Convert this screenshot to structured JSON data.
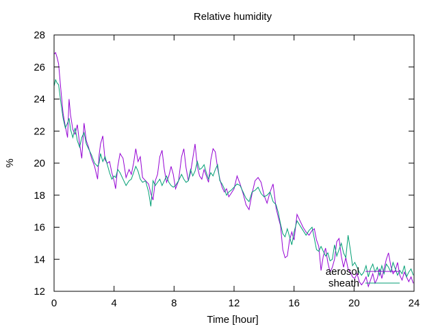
{
  "chart_data": {
    "type": "line",
    "title": "Relative humidity",
    "xlabel": "Time [hour]",
    "ylabel": "%",
    "xlim": [
      0,
      24
    ],
    "ylim": [
      12,
      28
    ],
    "xticks": [
      0,
      4,
      8,
      12,
      16,
      20,
      24
    ],
    "yticks": [
      12,
      14,
      16,
      18,
      20,
      22,
      24,
      26,
      28
    ],
    "grid": false,
    "legend_position": "bottom-right",
    "series": [
      {
        "name": "aerosol",
        "color": "#9400d3",
        "x": [
          0,
          0.1,
          0.2,
          0.3,
          0.45,
          0.6,
          0.75,
          0.9,
          1.0,
          1.1,
          1.25,
          1.4,
          1.55,
          1.7,
          1.85,
          2.0,
          2.15,
          2.3,
          2.5,
          2.7,
          2.9,
          3.0,
          3.1,
          3.25,
          3.4,
          3.55,
          3.7,
          3.85,
          4.0,
          4.1,
          4.25,
          4.4,
          4.6,
          4.8,
          5.0,
          5.15,
          5.3,
          5.45,
          5.6,
          5.75,
          5.9,
          6.1,
          6.3,
          6.45,
          6.6,
          6.75,
          6.9,
          7.05,
          7.2,
          7.35,
          7.5,
          7.65,
          7.8,
          7.95,
          8.1,
          8.3,
          8.5,
          8.65,
          8.8,
          8.95,
          9.1,
          9.25,
          9.4,
          9.55,
          9.7,
          9.85,
          10.0,
          10.15,
          10.3,
          10.45,
          10.6,
          10.75,
          10.9,
          11.05,
          11.2,
          11.35,
          11.5,
          11.65,
          11.8,
          12.0,
          12.2,
          12.4,
          12.6,
          12.8,
          13.0,
          13.2,
          13.4,
          13.6,
          13.8,
          14.0,
          14.2,
          14.4,
          14.6,
          14.8,
          14.95,
          15.1,
          15.25,
          15.4,
          15.55,
          15.7,
          15.85,
          16.0,
          16.2,
          16.4,
          16.6,
          16.8,
          17.0,
          17.2,
          17.35,
          17.5,
          17.65,
          17.8,
          17.95,
          18.1,
          18.25,
          18.4,
          18.55,
          18.7,
          18.85,
          19.0,
          19.15,
          19.3,
          19.45,
          19.6,
          19.75,
          19.9,
          20.05,
          20.2,
          20.35,
          20.5,
          20.65,
          20.8,
          20.95,
          21.1,
          21.25,
          21.4,
          21.55,
          21.7,
          21.85,
          22.0,
          22.15,
          22.3,
          22.45,
          22.6,
          22.75,
          22.9,
          23.05,
          23.2,
          23.35,
          23.5,
          23.65,
          23.8,
          23.95
        ],
        "y": [
          26.8,
          26.9,
          26.6,
          26.2,
          24.6,
          23.1,
          22.3,
          21.6,
          24.0,
          23.0,
          22.1,
          21.8,
          22.4,
          21.2,
          20.3,
          22.5,
          21.4,
          21.0,
          20.3,
          19.8,
          19.0,
          20.5,
          21.2,
          21.7,
          20.2,
          20.0,
          20.1,
          19.4,
          18.9,
          18.4,
          19.8,
          20.6,
          20.3,
          19.1,
          19.6,
          19.3,
          20.0,
          20.9,
          20.1,
          20.4,
          19.1,
          18.9,
          18.7,
          18.1,
          17.7,
          18.9,
          19.3,
          20.4,
          20.8,
          19.6,
          18.8,
          19.2,
          19.8,
          19.3,
          18.4,
          18.9,
          20.4,
          20.9,
          19.7,
          18.9,
          19.4,
          20.3,
          21.2,
          19.8,
          19.2,
          19.0,
          19.6,
          19.2,
          18.8,
          20.2,
          20.9,
          20.7,
          19.7,
          19.0,
          18.5,
          18.2,
          18.4,
          17.9,
          18.1,
          18.4,
          19.2,
          18.7,
          18.1,
          17.4,
          17.1,
          18.1,
          18.9,
          19.1,
          18.8,
          18.0,
          17.5,
          18.2,
          18.7,
          17.2,
          16.6,
          16.1,
          14.6,
          14.1,
          14.2,
          15.2,
          15.7,
          15.2,
          16.8,
          16.4,
          16.0,
          15.7,
          15.5,
          15.8,
          15.9,
          15.2,
          14.8,
          13.3,
          14.2,
          14.7,
          13.8,
          13.2,
          13.5,
          14.0,
          15.1,
          15.3,
          14.2,
          13.5,
          14.1,
          13.4,
          13.2,
          12.9,
          12.8,
          13.1,
          12.6,
          12.4,
          12.6,
          12.9,
          12.3,
          12.7,
          13.1,
          12.5,
          12.8,
          13.4,
          12.8,
          13.4,
          14.0,
          14.4,
          13.6,
          13.1,
          13.3,
          13.8,
          13.0,
          12.7,
          13.2,
          12.9,
          12.6,
          12.9,
          12.5
        ]
      },
      {
        "name": "sheath",
        "color": "#009e73",
        "x": [
          0,
          0.1,
          0.2,
          0.3,
          0.45,
          0.6,
          0.75,
          0.9,
          1.0,
          1.1,
          1.25,
          1.4,
          1.55,
          1.7,
          1.85,
          2.0,
          2.15,
          2.3,
          2.5,
          2.7,
          2.9,
          3.0,
          3.1,
          3.25,
          3.4,
          3.55,
          3.7,
          3.85,
          4.0,
          4.1,
          4.25,
          4.4,
          4.6,
          4.8,
          5.0,
          5.15,
          5.3,
          5.45,
          5.6,
          5.75,
          5.9,
          6.1,
          6.3,
          6.45,
          6.6,
          6.75,
          6.9,
          7.05,
          7.2,
          7.35,
          7.5,
          7.65,
          7.8,
          7.95,
          8.1,
          8.3,
          8.5,
          8.65,
          8.8,
          8.95,
          9.1,
          9.25,
          9.4,
          9.55,
          9.7,
          9.85,
          10.0,
          10.15,
          10.3,
          10.45,
          10.6,
          10.75,
          10.9,
          11.05,
          11.2,
          11.35,
          11.5,
          11.65,
          11.8,
          12.0,
          12.2,
          12.4,
          12.6,
          12.8,
          13.0,
          13.2,
          13.4,
          13.6,
          13.8,
          14.0,
          14.2,
          14.4,
          14.6,
          14.8,
          14.95,
          15.1,
          15.25,
          15.4,
          15.55,
          15.7,
          15.85,
          16.0,
          16.2,
          16.4,
          16.6,
          16.8,
          17.0,
          17.2,
          17.35,
          17.5,
          17.65,
          17.8,
          17.95,
          18.1,
          18.25,
          18.4,
          18.55,
          18.7,
          18.85,
          19.0,
          19.15,
          19.3,
          19.45,
          19.6,
          19.75,
          19.9,
          20.05,
          20.2,
          20.35,
          20.5,
          20.65,
          20.8,
          20.95,
          21.1,
          21.25,
          21.4,
          21.55,
          21.7,
          21.85,
          22.0,
          22.15,
          22.3,
          22.45,
          22.6,
          22.75,
          22.9,
          23.05,
          23.2,
          23.35,
          23.5,
          23.65,
          23.8,
          23.95
        ],
        "y": [
          24.8,
          25.2,
          25.0,
          24.9,
          23.8,
          22.8,
          22.2,
          22.5,
          22.8,
          22.1,
          21.6,
          22.2,
          21.4,
          21.0,
          21.6,
          21.9,
          21.2,
          20.9,
          20.5,
          20.0,
          19.8,
          20.0,
          20.6,
          20.1,
          20.4,
          19.9,
          19.4,
          19.0,
          19.2,
          19.1,
          19.6,
          19.4,
          19.0,
          18.6,
          18.9,
          19.0,
          19.4,
          19.8,
          19.5,
          19.0,
          18.8,
          18.9,
          18.2,
          17.3,
          18.9,
          18.6,
          18.8,
          19.0,
          18.6,
          18.9,
          19.2,
          18.8,
          18.6,
          18.5,
          18.6,
          18.9,
          19.3,
          19.0,
          18.8,
          18.9,
          19.6,
          19.2,
          19.5,
          20.1,
          19.6,
          19.7,
          19.9,
          19.4,
          19.0,
          19.4,
          19.2,
          19.6,
          19.9,
          18.9,
          18.7,
          18.4,
          18.0,
          18.2,
          18.3,
          18.5,
          18.7,
          18.6,
          18.2,
          17.8,
          17.6,
          18.2,
          18.3,
          18.5,
          18.1,
          17.9,
          18.0,
          18.2,
          17.6,
          17.4,
          16.9,
          16.2,
          15.6,
          15.4,
          15.9,
          15.4,
          14.9,
          15.7,
          16.4,
          16.1,
          15.8,
          15.5,
          15.8,
          16.0,
          15.3,
          14.6,
          14.5,
          14.8,
          14.5,
          14.2,
          14.4,
          13.9,
          14.0,
          14.9,
          14.2,
          14.6,
          15.0,
          14.4,
          14.1,
          15.5,
          14.6,
          13.6,
          13.8,
          13.5,
          13.2,
          13.0,
          13.2,
          13.6,
          12.9,
          13.4,
          13.7,
          13.2,
          13.5,
          13.0,
          13.6,
          13.1,
          13.7,
          13.5,
          13.2,
          13.8,
          13.4,
          13.0,
          13.3,
          13.1,
          13.6,
          12.9,
          13.2,
          13.4,
          13.0
        ]
      }
    ]
  }
}
